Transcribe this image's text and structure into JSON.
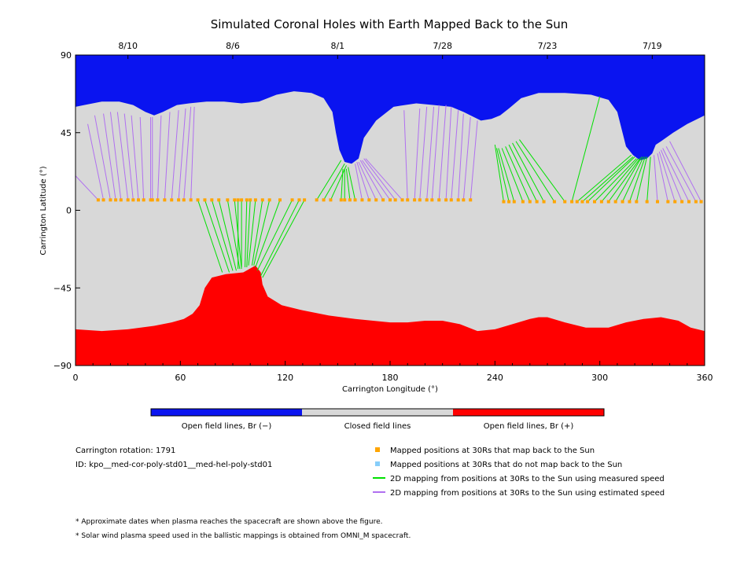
{
  "chart_data": {
    "type": "map",
    "title": "Simulated Coronal Holes with Earth Mapped Back to the Sun",
    "xlabel": "Carrington Longitude (°)",
    "ylabel": "Carrington Latitude (°)",
    "xlim": [
      0,
      360
    ],
    "ylim": [
      -90,
      90
    ],
    "xticks": [
      "0",
      "60",
      "120",
      "180",
      "240",
      "300",
      "360"
    ],
    "yticks": [
      "90",
      "45",
      "0",
      "−45",
      "−90"
    ],
    "date_ticks": [
      {
        "label": "8/10",
        "lon": 30
      },
      {
        "label": "8/6",
        "lon": 90
      },
      {
        "label": "8/1",
        "lon": 150
      },
      {
        "label": "7/28",
        "lon": 210
      },
      {
        "label": "7/23",
        "lon": 270
      },
      {
        "label": "7/19",
        "lon": 330
      }
    ],
    "colors": {
      "open_negative": "#0a14f0",
      "closed": "#d8d8d8",
      "open_positive": "#ff0000",
      "mapped_point": "#ffa500",
      "unmapped_point": "#87cefa",
      "measured_line": "#00e000",
      "estimated_line": "#b070f0"
    },
    "north_hole_boundary": [
      [
        0,
        60
      ],
      [
        5,
        61
      ],
      [
        15,
        63
      ],
      [
        25,
        63
      ],
      [
        33,
        61
      ],
      [
        40,
        57
      ],
      [
        45,
        55
      ],
      [
        50,
        57
      ],
      [
        58,
        61
      ],
      [
        65,
        62
      ],
      [
        75,
        63
      ],
      [
        85,
        63
      ],
      [
        95,
        62
      ],
      [
        105,
        63
      ],
      [
        115,
        67
      ],
      [
        125,
        69
      ],
      [
        135,
        68
      ],
      [
        142,
        65
      ],
      [
        147,
        57
      ],
      [
        149,
        45
      ],
      [
        151,
        35
      ],
      [
        154,
        28
      ],
      [
        158,
        27
      ],
      [
        162,
        30
      ],
      [
        165,
        42
      ],
      [
        172,
        52
      ],
      [
        182,
        60
      ],
      [
        195,
        62
      ],
      [
        205,
        61
      ],
      [
        215,
        60
      ],
      [
        222,
        57
      ],
      [
        228,
        54
      ],
      [
        232,
        52
      ],
      [
        238,
        53
      ],
      [
        243,
        55
      ],
      [
        248,
        59
      ],
      [
        255,
        65
      ],
      [
        265,
        68
      ],
      [
        280,
        68
      ],
      [
        295,
        67
      ],
      [
        305,
        64
      ],
      [
        310,
        57
      ],
      [
        313,
        45
      ],
      [
        315,
        37
      ],
      [
        319,
        32
      ],
      [
        323,
        29
      ],
      [
        327,
        30
      ],
      [
        330,
        33
      ],
      [
        332,
        38
      ],
      [
        335,
        40
      ],
      [
        342,
        45
      ],
      [
        350,
        50
      ],
      [
        360,
        55
      ]
    ],
    "south_hole_boundary": [
      [
        0,
        -69
      ],
      [
        15,
        -70
      ],
      [
        30,
        -69
      ],
      [
        45,
        -67
      ],
      [
        55,
        -65
      ],
      [
        62,
        -63
      ],
      [
        67,
        -60
      ],
      [
        71,
        -55
      ],
      [
        74,
        -45
      ],
      [
        78,
        -39
      ],
      [
        86,
        -37
      ],
      [
        96,
        -36
      ],
      [
        103,
        -32
      ],
      [
        106,
        -36
      ],
      [
        107,
        -43
      ],
      [
        110,
        -50
      ],
      [
        118,
        -55
      ],
      [
        130,
        -58
      ],
      [
        145,
        -61
      ],
      [
        160,
        -63
      ],
      [
        180,
        -65
      ],
      [
        190,
        -65
      ],
      [
        200,
        -64
      ],
      [
        210,
        -64
      ],
      [
        220,
        -66
      ],
      [
        230,
        -70
      ],
      [
        240,
        -69
      ],
      [
        250,
        -66
      ],
      [
        260,
        -63
      ],
      [
        265,
        -62
      ],
      [
        270,
        -62
      ],
      [
        280,
        -65
      ],
      [
        292,
        -68
      ],
      [
        305,
        -68
      ],
      [
        315,
        -65
      ],
      [
        325,
        -63
      ],
      [
        335,
        -62
      ],
      [
        345,
        -64
      ],
      [
        352,
        -68
      ],
      [
        360,
        -70
      ]
    ],
    "mappings": [
      {
        "lon": 13,
        "lat": 6,
        "foot_lon": 0,
        "foot_lat": 20,
        "kind": "estimated"
      },
      {
        "lon": 16,
        "lat": 6,
        "foot_lon": 7,
        "foot_lat": 50,
        "kind": "estimated"
      },
      {
        "lon": 20,
        "lat": 6,
        "foot_lon": 11,
        "foot_lat": 55,
        "kind": "estimated"
      },
      {
        "lon": 23,
        "lat": 6,
        "foot_lon": 16,
        "foot_lat": 56,
        "kind": "estimated"
      },
      {
        "lon": 26,
        "lat": 6,
        "foot_lon": 20,
        "foot_lat": 57,
        "kind": "estimated"
      },
      {
        "lon": 30,
        "lat": 6,
        "foot_lon": 24,
        "foot_lat": 57,
        "kind": "estimated"
      },
      {
        "lon": 33,
        "lat": 6,
        "foot_lon": 28,
        "foot_lat": 56,
        "kind": "estimated"
      },
      {
        "lon": 36,
        "lat": 6,
        "foot_lon": 32,
        "foot_lat": 55,
        "kind": "estimated"
      },
      {
        "lon": 39,
        "lat": 6,
        "foot_lon": 37,
        "foot_lat": 54,
        "kind": "estimated"
      },
      {
        "lon": 43,
        "lat": 6,
        "foot_lon": 43,
        "foot_lat": 54,
        "kind": "estimated"
      },
      {
        "lon": 44,
        "lat": 6,
        "foot_lon": 44,
        "foot_lat": 54,
        "kind": "estimated"
      },
      {
        "lon": 47,
        "lat": 6,
        "foot_lon": 49,
        "foot_lat": 55,
        "kind": "estimated"
      },
      {
        "lon": 51,
        "lat": 6,
        "foot_lon": 54,
        "foot_lat": 57,
        "kind": "estimated"
      },
      {
        "lon": 55,
        "lat": 6,
        "foot_lon": 59,
        "foot_lat": 58,
        "kind": "estimated"
      },
      {
        "lon": 59,
        "lat": 6,
        "foot_lon": 63,
        "foot_lat": 59,
        "kind": "estimated"
      },
      {
        "lon": 62,
        "lat": 6,
        "foot_lon": 66,
        "foot_lat": 60,
        "kind": "estimated"
      },
      {
        "lon": 66,
        "lat": 6,
        "foot_lon": 68,
        "foot_lat": 60,
        "kind": "estimated"
      },
      {
        "lon": 70,
        "lat": 6,
        "foot_lon": 84,
        "foot_lat": -36,
        "kind": "measured"
      },
      {
        "lon": 74,
        "lat": 6,
        "foot_lon": 88,
        "foot_lat": -36,
        "kind": "measured"
      },
      {
        "lon": 78,
        "lat": 6,
        "foot_lon": 90,
        "foot_lat": -35,
        "kind": "measured"
      },
      {
        "lon": 82,
        "lat": 6,
        "foot_lon": 92,
        "foot_lat": -35,
        "kind": "measured"
      },
      {
        "lon": 87,
        "lat": 6,
        "foot_lon": 94,
        "foot_lat": -34,
        "kind": "measured"
      },
      {
        "lon": 91,
        "lat": 6,
        "foot_lon": 95,
        "foot_lat": -34,
        "kind": "measured"
      },
      {
        "lon": 93,
        "lat": 6,
        "foot_lon": 93,
        "foot_lat": -34,
        "kind": "measured"
      },
      {
        "lon": 95,
        "lat": 6,
        "foot_lon": 95,
        "foot_lat": -33,
        "kind": "measured"
      },
      {
        "lon": 98,
        "lat": 6,
        "foot_lon": 97,
        "foot_lat": -33,
        "kind": "measured"
      },
      {
        "lon": 100,
        "lat": 6,
        "foot_lon": 98,
        "foot_lat": -33,
        "kind": "measured"
      },
      {
        "lon": 103,
        "lat": 6,
        "foot_lon": 99,
        "foot_lat": -32,
        "kind": "measured"
      },
      {
        "lon": 107,
        "lat": 6,
        "foot_lon": 101,
        "foot_lat": -32,
        "kind": "measured"
      },
      {
        "lon": 111,
        "lat": 6,
        "foot_lon": 102,
        "foot_lat": -32,
        "kind": "measured"
      },
      {
        "lon": 117,
        "lat": 6,
        "foot_lon": 103,
        "foot_lat": -33,
        "kind": "measured"
      },
      {
        "lon": 124,
        "lat": 6,
        "foot_lon": 104,
        "foot_lat": -35,
        "kind": "measured"
      },
      {
        "lon": 128,
        "lat": 6,
        "foot_lon": 106,
        "foot_lat": -38,
        "kind": "measured"
      },
      {
        "lon": 131,
        "lat": 6,
        "foot_lon": 107,
        "foot_lat": -39,
        "kind": "measured"
      },
      {
        "lon": 138,
        "lat": 6,
        "foot_lon": 152,
        "foot_lat": 29,
        "kind": "measured"
      },
      {
        "lon": 142,
        "lat": 6,
        "foot_lon": 154,
        "foot_lat": 27,
        "kind": "measured"
      },
      {
        "lon": 146,
        "lat": 6,
        "foot_lon": 155,
        "foot_lat": 26,
        "kind": "measured"
      },
      {
        "lon": 152,
        "lat": 6,
        "foot_lon": 153,
        "foot_lat": 24,
        "kind": "measured"
      },
      {
        "lon": 154,
        "lat": 6,
        "foot_lon": 154,
        "foot_lat": 24,
        "kind": "measured"
      },
      {
        "lon": 157,
        "lat": 6,
        "foot_lon": 155,
        "foot_lat": 24,
        "kind": "measured"
      },
      {
        "lon": 160,
        "lat": 6,
        "foot_lon": 156,
        "foot_lat": 25,
        "kind": "measured"
      },
      {
        "lon": 164,
        "lat": 6,
        "foot_lon": 160,
        "foot_lat": 27,
        "kind": "estimated"
      },
      {
        "lon": 168,
        "lat": 6,
        "foot_lon": 161,
        "foot_lat": 28,
        "kind": "estimated"
      },
      {
        "lon": 172,
        "lat": 6,
        "foot_lon": 162,
        "foot_lat": 28,
        "kind": "estimated"
      },
      {
        "lon": 176,
        "lat": 6,
        "foot_lon": 163,
        "foot_lat": 29,
        "kind": "estimated"
      },
      {
        "lon": 180,
        "lat": 6,
        "foot_lon": 164,
        "foot_lat": 29,
        "kind": "estimated"
      },
      {
        "lon": 183,
        "lat": 6,
        "foot_lon": 165,
        "foot_lat": 30,
        "kind": "estimated"
      },
      {
        "lon": 187,
        "lat": 6,
        "foot_lon": 166,
        "foot_lat": 30,
        "kind": "estimated"
      },
      {
        "lon": 190,
        "lat": 6,
        "foot_lon": 188,
        "foot_lat": 58,
        "kind": "estimated"
      },
      {
        "lon": 194,
        "lat": 6,
        "foot_lon": 197,
        "foot_lat": 59,
        "kind": "estimated"
      },
      {
        "lon": 197,
        "lat": 6,
        "foot_lon": 201,
        "foot_lat": 60,
        "kind": "estimated"
      },
      {
        "lon": 201,
        "lat": 6,
        "foot_lon": 205,
        "foot_lat": 60,
        "kind": "estimated"
      },
      {
        "lon": 204,
        "lat": 6,
        "foot_lon": 208,
        "foot_lat": 61,
        "kind": "estimated"
      },
      {
        "lon": 208,
        "lat": 6,
        "foot_lon": 212,
        "foot_lat": 61,
        "kind": "estimated"
      },
      {
        "lon": 212,
        "lat": 6,
        "foot_lon": 215,
        "foot_lat": 60,
        "kind": "estimated"
      },
      {
        "lon": 215,
        "lat": 6,
        "foot_lon": 219,
        "foot_lat": 58,
        "kind": "estimated"
      },
      {
        "lon": 219,
        "lat": 6,
        "foot_lon": 222,
        "foot_lat": 56,
        "kind": "estimated"
      },
      {
        "lon": 222,
        "lat": 6,
        "foot_lon": 226,
        "foot_lat": 54,
        "kind": "estimated"
      },
      {
        "lon": 226,
        "lat": 6,
        "foot_lon": 230,
        "foot_lat": 52,
        "kind": "estimated"
      },
      {
        "lon": 245,
        "lat": 5,
        "foot_lon": 240,
        "foot_lat": 38,
        "kind": "measured"
      },
      {
        "lon": 248,
        "lat": 5,
        "foot_lon": 241,
        "foot_lat": 36,
        "kind": "measured"
      },
      {
        "lon": 251,
        "lat": 5,
        "foot_lon": 242,
        "foot_lat": 36,
        "kind": "measured"
      },
      {
        "lon": 256,
        "lat": 5,
        "foot_lon": 244,
        "foot_lat": 36,
        "kind": "measured"
      },
      {
        "lon": 260,
        "lat": 5,
        "foot_lon": 246,
        "foot_lat": 37,
        "kind": "measured"
      },
      {
        "lon": 264,
        "lat": 5,
        "foot_lon": 248,
        "foot_lat": 38,
        "kind": "measured"
      },
      {
        "lon": 268,
        "lat": 5,
        "foot_lon": 250,
        "foot_lat": 39,
        "kind": "measured"
      },
      {
        "lon": 274,
        "lat": 5,
        "foot_lon": 252,
        "foot_lat": 40,
        "kind": "measured"
      },
      {
        "lon": 280,
        "lat": 5,
        "foot_lon": 254,
        "foot_lat": 41,
        "kind": "measured"
      },
      {
        "lon": 284,
        "lat": 5,
        "foot_lon": 300,
        "foot_lat": 66,
        "kind": "measured"
      },
      {
        "lon": 287,
        "lat": 5,
        "foot_lon": 318,
        "foot_lat": 32,
        "kind": "measured"
      },
      {
        "lon": 290,
        "lat": 5,
        "foot_lon": 319,
        "foot_lat": 31,
        "kind": "measured"
      },
      {
        "lon": 293,
        "lat": 5,
        "foot_lon": 320,
        "foot_lat": 31,
        "kind": "measured"
      },
      {
        "lon": 297,
        "lat": 5,
        "foot_lon": 321,
        "foot_lat": 30,
        "kind": "measured"
      },
      {
        "lon": 301,
        "lat": 5,
        "foot_lon": 322,
        "foot_lat": 30,
        "kind": "measured"
      },
      {
        "lon": 305,
        "lat": 5,
        "foot_lon": 323,
        "foot_lat": 30,
        "kind": "measured"
      },
      {
        "lon": 309,
        "lat": 5,
        "foot_lon": 324,
        "foot_lat": 31,
        "kind": "measured"
      },
      {
        "lon": 313,
        "lat": 5,
        "foot_lon": 325,
        "foot_lat": 31,
        "kind": "measured"
      },
      {
        "lon": 317,
        "lat": 5,
        "foot_lon": 326,
        "foot_lat": 31,
        "kind": "measured"
      },
      {
        "lon": 321,
        "lat": 5,
        "foot_lon": 327,
        "foot_lat": 31,
        "kind": "measured"
      },
      {
        "lon": 327,
        "lat": 5,
        "foot_lon": 329,
        "foot_lat": 31,
        "kind": "measured"
      },
      {
        "lon": 333,
        "lat": 5,
        "foot_lon": 331,
        "foot_lat": 32,
        "kind": "estimated"
      },
      {
        "lon": 339,
        "lat": 5,
        "foot_lon": 333,
        "foot_lat": 33,
        "kind": "estimated"
      },
      {
        "lon": 343,
        "lat": 5,
        "foot_lon": 334,
        "foot_lat": 34,
        "kind": "estimated"
      },
      {
        "lon": 347,
        "lat": 5,
        "foot_lon": 335,
        "foot_lat": 35,
        "kind": "estimated"
      },
      {
        "lon": 351,
        "lat": 5,
        "foot_lon": 336,
        "foot_lat": 36,
        "kind": "estimated"
      },
      {
        "lon": 355,
        "lat": 5,
        "foot_lon": 338,
        "foot_lat": 37,
        "kind": "estimated"
      },
      {
        "lon": 358,
        "lat": 5,
        "foot_lon": 340,
        "foot_lat": 40,
        "kind": "estimated"
      }
    ],
    "colorbar_labels": [
      "Open field lines, Br (−)",
      "Closed field lines",
      "Open field lines, Br (+)"
    ]
  },
  "info": {
    "rotation": "Carrington rotation: 1791",
    "id": "ID: kpo__med-cor-poly-std01__med-hel-poly-std01"
  },
  "legend": [
    {
      "kind": "mapped",
      "label": "Mapped positions at 30Rs that map back to the Sun"
    },
    {
      "kind": "unmapped",
      "label": "Mapped positions at 30Rs that do not map back to the Sun"
    },
    {
      "kind": "measured",
      "label": "2D mapping from positions at 30Rs to the Sun using measured speed"
    },
    {
      "kind": "estimated",
      "label": "2D mapping from positions at 30Rs to the Sun using estimated speed"
    }
  ],
  "footnotes": [
    "* Approximate dates when plasma reaches the spacecraft are shown above the figure.",
    "* Solar wind plasma speed used in the ballistic mappings is obtained from OMNI_M spacecraft."
  ]
}
